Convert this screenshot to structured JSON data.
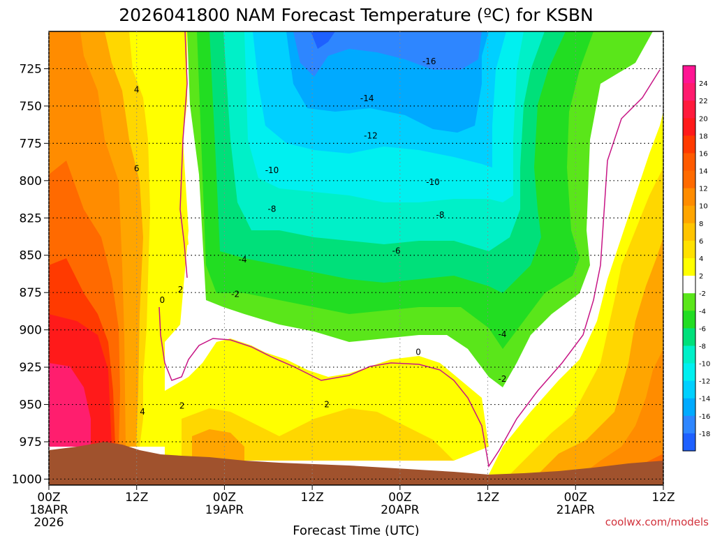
{
  "chart_data": {
    "type": "heatmap",
    "title": "2026041800 NAM Forecast Temperature (ºC) for KSBN",
    "xlabel": "Forecast Time (UTC)",
    "ylabel": "",
    "watermark": "coolwx.com/models",
    "x_range_hours": [
      0,
      84
    ],
    "y_range_hpa": [
      1004,
      700
    ],
    "y_ticks": [
      "725",
      "750",
      "775",
      "800",
      "825",
      "850",
      "875",
      "900",
      "925",
      "950",
      "975",
      "1000"
    ],
    "x_ticks": [
      {
        "hour": 0,
        "label": "00Z",
        "sub1": "18APR",
        "sub2": "2026"
      },
      {
        "hour": 12,
        "label": "12Z",
        "sub1": "",
        "sub2": ""
      },
      {
        "hour": 24,
        "label": "00Z",
        "sub1": "19APR",
        "sub2": ""
      },
      {
        "hour": 36,
        "label": "12Z",
        "sub1": "",
        "sub2": ""
      },
      {
        "hour": 48,
        "label": "00Z",
        "sub1": "20APR",
        "sub2": ""
      },
      {
        "hour": 60,
        "label": "12Z",
        "sub1": "",
        "sub2": ""
      },
      {
        "hour": 72,
        "label": "00Z",
        "sub1": "21APR",
        "sub2": ""
      },
      {
        "hour": 84,
        "label": "12Z",
        "sub1": "",
        "sub2": ""
      }
    ],
    "colorbar": {
      "labels": [
        "24",
        "22",
        "20",
        "18",
        "16",
        "14",
        "12",
        "10",
        "8",
        "6",
        "4",
        "2",
        "-2",
        "-4",
        "-6",
        "-8",
        "-10",
        "-12",
        "-14",
        "-16",
        "-18"
      ],
      "colors": [
        "#ff1493",
        "#ff1a6e",
        "#ff1a3c",
        "#ff1a1a",
        "#ff3a00",
        "#ff5a00",
        "#ff6a00",
        "#ff8c00",
        "#ffa500",
        "#ffc400",
        "#ffe100",
        "#ffff00",
        "#ffffff",
        "#5ae61a",
        "#22dd22",
        "#00e07a",
        "#00f0c8",
        "#00f0f0",
        "#00d0ff",
        "#00aaff",
        "#2e86ff",
        "#1e60ff"
      ]
    },
    "contour_labels": [
      {
        "text": "-16",
        "hour": 52,
        "hpa": 720
      },
      {
        "text": "-14",
        "hour": 43.5,
        "hpa": 745
      },
      {
        "text": "-12",
        "hour": 44,
        "hpa": 770
      },
      {
        "text": "-10",
        "hour": 30.5,
        "hpa": 793
      },
      {
        "text": "-10",
        "hour": 52.5,
        "hpa": 801
      },
      {
        "text": "-8",
        "hour": 30.5,
        "hpa": 819
      },
      {
        "text": "-8",
        "hour": 53.5,
        "hpa": 823
      },
      {
        "text": "-6",
        "hour": 47.5,
        "hpa": 847
      },
      {
        "text": "-4",
        "hour": 26.5,
        "hpa": 853
      },
      {
        "text": "-4",
        "hour": 62,
        "hpa": 903
      },
      {
        "text": "-2",
        "hour": 25.5,
        "hpa": 876
      },
      {
        "text": "-2",
        "hour": 62,
        "hpa": 933
      },
      {
        "text": "0",
        "hour": 50.5,
        "hpa": 915
      },
      {
        "text": "0",
        "hour": 15.5,
        "hpa": 880
      },
      {
        "text": "2",
        "hour": 18,
        "hpa": 873
      },
      {
        "text": "2",
        "hour": 18.2,
        "hpa": 951
      },
      {
        "text": "2",
        "hour": 38,
        "hpa": 950
      },
      {
        "text": "4",
        "hour": 12,
        "hpa": 739
      },
      {
        "text": "4",
        "hour": 12.8,
        "hpa": 955
      },
      {
        "text": "6",
        "hour": 12,
        "hpa": 792
      }
    ]
  }
}
